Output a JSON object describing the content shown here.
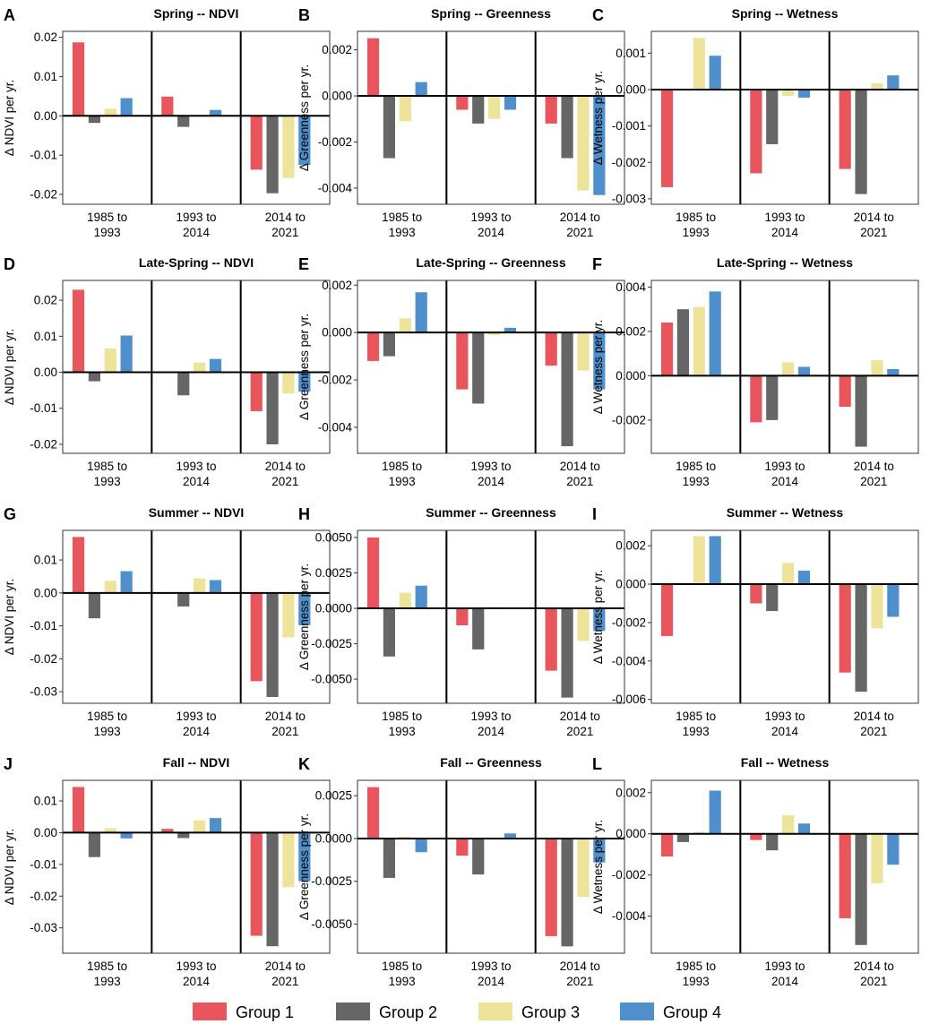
{
  "colors": {
    "Group 1": "#E8555D",
    "Group 2": "#666666",
    "Group 3": "#EDE39A",
    "Group 4": "#4F90CC"
  },
  "legend": [
    "Group 1",
    "Group 2",
    "Group 3",
    "Group 4"
  ],
  "chart_data": [
    {
      "type": "bar",
      "label": "A",
      "title": "Spring -- NDVI",
      "ylabel": "Δ NDVI per yr.",
      "periods": [
        [
          "1985 to",
          "1993"
        ],
        [
          "1993 to",
          "2014"
        ],
        [
          "2014 to",
          "2021"
        ]
      ],
      "ylim": [
        -0.0225,
        0.0215
      ],
      "ticks": [
        {
          "v": 0.02,
          "t": "0.02"
        },
        {
          "v": 0.01,
          "t": "0.01"
        },
        {
          "v": 0,
          "t": "0.00"
        },
        {
          "v": -0.01,
          "t": "-0.01"
        },
        {
          "v": -0.02,
          "t": "-0.02"
        }
      ],
      "series": [
        {
          "name": "Group 1",
          "values": [
            0.0187,
            0.0049,
            -0.0137
          ]
        },
        {
          "name": "Group 2",
          "values": [
            -0.0018,
            -0.0028,
            -0.0197
          ]
        },
        {
          "name": "Group 3",
          "values": [
            0.0018,
            0.0002,
            -0.0158
          ]
        },
        {
          "name": "Group 4",
          "values": [
            0.0045,
            0.0015,
            -0.0125
          ]
        }
      ]
    },
    {
      "type": "bar",
      "label": "B",
      "title": "Spring -- Greenness",
      "ylabel": "Δ Greenness per yr.",
      "periods": [
        [
          "1985 to",
          "1993"
        ],
        [
          "1993 to",
          "2014"
        ],
        [
          "2014 to",
          "2021"
        ]
      ],
      "ylim": [
        -0.0047,
        0.0028
      ],
      "ticks": [
        {
          "v": 0.002,
          "t": "0.002"
        },
        {
          "v": 0,
          "t": "0.000"
        },
        {
          "v": -0.002,
          "t": "-0.002"
        },
        {
          "v": -0.004,
          "t": "-0.004"
        }
      ],
      "series": [
        {
          "name": "Group 1",
          "values": [
            0.0025,
            -0.0006,
            -0.0012
          ]
        },
        {
          "name": "Group 2",
          "values": [
            -0.0027,
            -0.0012,
            -0.0027
          ]
        },
        {
          "name": "Group 3",
          "values": [
            -0.0011,
            -0.001,
            -0.0041
          ]
        },
        {
          "name": "Group 4",
          "values": [
            0.0006,
            -0.0006,
            -0.0043
          ]
        }
      ]
    },
    {
      "type": "bar",
      "label": "C",
      "title": "Spring -- Wetness",
      "ylabel": "Δ Wetness per yr.",
      "periods": [
        [
          "1985 to",
          "1993"
        ],
        [
          "1993 to",
          "2014"
        ],
        [
          "2014 to",
          "2021"
        ]
      ],
      "ylim": [
        -0.00315,
        0.0016
      ],
      "ticks": [
        {
          "v": 0.001,
          "t": "0.001"
        },
        {
          "v": 0,
          "t": "0.000"
        },
        {
          "v": -0.001,
          "t": "-0.001"
        },
        {
          "v": -0.002,
          "t": "-0.002"
        },
        {
          "v": -0.003,
          "t": "-0.003"
        }
      ],
      "series": [
        {
          "name": "Group 1",
          "values": [
            -0.00268,
            -0.0023,
            -0.00218
          ]
        },
        {
          "name": "Group 2",
          "values": [
            0,
            -0.0015,
            -0.00287
          ]
        },
        {
          "name": "Group 3",
          "values": [
            0.00142,
            -0.00017,
            0.00017
          ]
        },
        {
          "name": "Group 4",
          "values": [
            0.00093,
            -0.00022,
            0.00039
          ]
        }
      ]
    },
    {
      "type": "bar",
      "label": "D",
      "title": "Late-Spring -- NDVI",
      "ylabel": "Δ NDVI per yr.",
      "periods": [
        [
          "1985 to",
          "1993"
        ],
        [
          "1993 to",
          "2014"
        ],
        [
          "2014 to",
          "2021"
        ]
      ],
      "ylim": [
        -0.0225,
        0.0255
      ],
      "ticks": [
        {
          "v": 0.02,
          "t": "0.02"
        },
        {
          "v": 0.01,
          "t": "0.01"
        },
        {
          "v": 0,
          "t": "0.00"
        },
        {
          "v": -0.01,
          "t": "-0.01"
        },
        {
          "v": -0.02,
          "t": "-0.02"
        }
      ],
      "series": [
        {
          "name": "Group 1",
          "values": [
            0.0229,
            0,
            -0.0108
          ]
        },
        {
          "name": "Group 2",
          "values": [
            -0.0025,
            -0.0064,
            -0.02
          ]
        },
        {
          "name": "Group 3",
          "values": [
            0.0066,
            0.0027,
            -0.0059
          ]
        },
        {
          "name": "Group 4",
          "values": [
            0.0102,
            0.0037,
            -0.0054
          ]
        }
      ]
    },
    {
      "type": "bar",
      "label": "E",
      "title": "Late-Spring -- Greenness",
      "ylabel": "Δ Greenness per yr.",
      "periods": [
        [
          "1985 to",
          "1993"
        ],
        [
          "1993 to",
          "2014"
        ],
        [
          "2014 to",
          "2021"
        ]
      ],
      "ylim": [
        -0.0051,
        0.0022
      ],
      "ticks": [
        {
          "v": 0.002,
          "t": "0.002"
        },
        {
          "v": 0,
          "t": "0.000"
        },
        {
          "v": -0.002,
          "t": "-0.002"
        },
        {
          "v": -0.004,
          "t": "-0.004"
        }
      ],
      "series": [
        {
          "name": "Group 1",
          "values": [
            -0.0012,
            -0.0024,
            -0.0014
          ]
        },
        {
          "name": "Group 2",
          "values": [
            -0.001,
            -0.003,
            -0.0048
          ]
        },
        {
          "name": "Group 3",
          "values": [
            0.0006,
            -0.0001,
            -0.0016
          ]
        },
        {
          "name": "Group 4",
          "values": [
            0.0017,
            0.0002,
            -0.0024
          ]
        }
      ]
    },
    {
      "type": "bar",
      "label": "F",
      "title": "Late-Spring -- Wetness",
      "ylabel": "Δ Wetness per yr.",
      "periods": [
        [
          "1985 to",
          "1993"
        ],
        [
          "1993 to",
          "2014"
        ],
        [
          "2014 to",
          "2021"
        ]
      ],
      "ylim": [
        -0.0035,
        0.0043
      ],
      "ticks": [
        {
          "v": 0.004,
          "t": "0.004"
        },
        {
          "v": 0.002,
          "t": "0.002"
        },
        {
          "v": 0,
          "t": "0.000"
        },
        {
          "v": -0.002,
          "t": "-0.002"
        }
      ],
      "series": [
        {
          "name": "Group 1",
          "values": [
            0.0024,
            -0.0021,
            -0.0014
          ]
        },
        {
          "name": "Group 2",
          "values": [
            0.003,
            -0.002,
            -0.0032
          ]
        },
        {
          "name": "Group 3",
          "values": [
            0.0031,
            0.0006,
            0.0007
          ]
        },
        {
          "name": "Group 4",
          "values": [
            0.0038,
            0.0004,
            0.0003
          ]
        }
      ]
    },
    {
      "type": "bar",
      "label": "G",
      "title": "Summer -- NDVI",
      "ylabel": "Δ NDVI per yr.",
      "periods": [
        [
          "1985 to",
          "1993"
        ],
        [
          "1993 to",
          "2014"
        ],
        [
          "2014 to",
          "2021"
        ]
      ],
      "ylim": [
        -0.0335,
        0.019
      ],
      "ticks": [
        {
          "v": 0.01,
          "t": "0.01"
        },
        {
          "v": 0,
          "t": "0.00"
        },
        {
          "v": -0.01,
          "t": "-0.01"
        },
        {
          "v": -0.02,
          "t": "-0.02"
        },
        {
          "v": -0.03,
          "t": "-0.03"
        }
      ],
      "series": [
        {
          "name": "Group 1",
          "values": [
            0.017,
            0,
            -0.0268
          ]
        },
        {
          "name": "Group 2",
          "values": [
            -0.0077,
            -0.0041,
            -0.0316
          ]
        },
        {
          "name": "Group 3",
          "values": [
            0.0037,
            0.0044,
            -0.0135
          ]
        },
        {
          "name": "Group 4",
          "values": [
            0.0066,
            0.0039,
            -0.0098
          ]
        }
      ]
    },
    {
      "type": "bar",
      "label": "H",
      "title": "Summer -- Greenness",
      "ylabel": "Δ Greenness per yr.",
      "periods": [
        [
          "1985 to",
          "1993"
        ],
        [
          "1993 to",
          "2014"
        ],
        [
          "2014 to",
          "2021"
        ]
      ],
      "ylim": [
        -0.0067,
        0.0055
      ],
      "ticks": [
        {
          "v": 0.005,
          "t": "0.0050"
        },
        {
          "v": 0.0025,
          "t": "0.0025"
        },
        {
          "v": 0,
          "t": "0.0000"
        },
        {
          "v": -0.0025,
          "t": "-0.0025"
        },
        {
          "v": -0.005,
          "t": "-0.0050"
        }
      ],
      "series": [
        {
          "name": "Group 1",
          "values": [
            0.005,
            -0.0012,
            -0.0044
          ]
        },
        {
          "name": "Group 2",
          "values": [
            -0.0034,
            -0.0029,
            -0.0063
          ]
        },
        {
          "name": "Group 3",
          "values": [
            0.0011,
            0.0001,
            -0.0023
          ]
        },
        {
          "name": "Group 4",
          "values": [
            0.0016,
            0,
            -0.0016
          ]
        }
      ]
    },
    {
      "type": "bar",
      "label": "I",
      "title": "Summer -- Wetness",
      "ylabel": "Δ Wetness per yr.",
      "periods": [
        [
          "1985 to",
          "1993"
        ],
        [
          "1993 to",
          "2014"
        ],
        [
          "2014 to",
          "2021"
        ]
      ],
      "ylim": [
        -0.0062,
        0.0028
      ],
      "ticks": [
        {
          "v": 0.002,
          "t": "0.002"
        },
        {
          "v": 0,
          "t": "0.000"
        },
        {
          "v": -0.002,
          "t": "-0.002"
        },
        {
          "v": -0.004,
          "t": "-0.004"
        },
        {
          "v": -0.006,
          "t": "-0.006"
        }
      ],
      "series": [
        {
          "name": "Group 1",
          "values": [
            -0.0027,
            -0.001,
            -0.0046
          ]
        },
        {
          "name": "Group 2",
          "values": [
            0,
            -0.0014,
            -0.0056
          ]
        },
        {
          "name": "Group 3",
          "values": [
            0.0025,
            0.0011,
            -0.0023
          ]
        },
        {
          "name": "Group 4",
          "values": [
            0.0025,
            0.0007,
            -0.0017
          ]
        }
      ]
    },
    {
      "type": "bar",
      "label": "J",
      "title": "Fall -- NDVI",
      "ylabel": "Δ NDVI per yr.",
      "periods": [
        [
          "1985 to",
          "1993"
        ],
        [
          "1993 to",
          "2014"
        ],
        [
          "2014 to",
          "2021"
        ]
      ],
      "ylim": [
        -0.038,
        0.0165
      ],
      "ticks": [
        {
          "v": 0.01,
          "t": "0.01"
        },
        {
          "v": 0,
          "t": "0.00"
        },
        {
          "v": -0.01,
          "t": "-0.01"
        },
        {
          "v": -0.02,
          "t": "-0.02"
        },
        {
          "v": -0.03,
          "t": "-0.03"
        }
      ],
      "series": [
        {
          "name": "Group 1",
          "values": [
            0.0144,
            0.0012,
            -0.0325
          ]
        },
        {
          "name": "Group 2",
          "values": [
            -0.0077,
            -0.0017,
            -0.0358
          ]
        },
        {
          "name": "Group 3",
          "values": [
            0.0014,
            0.0039,
            -0.0172
          ]
        },
        {
          "name": "Group 4",
          "values": [
            -0.0018,
            0.0046,
            -0.0153
          ]
        }
      ]
    },
    {
      "type": "bar",
      "label": "K",
      "title": "Fall -- Greenness",
      "ylabel": "Δ Greenness per yr.",
      "periods": [
        [
          "1985 to",
          "1993"
        ],
        [
          "1993 to",
          "2014"
        ],
        [
          "2014 to",
          "2021"
        ]
      ],
      "ylim": [
        -0.0067,
        0.0034
      ],
      "ticks": [
        {
          "v": 0.0025,
          "t": "0.0025"
        },
        {
          "v": 0,
          "t": "0.0000"
        },
        {
          "v": -0.0025,
          "t": "-0.0025"
        },
        {
          "v": -0.005,
          "t": "-0.0050"
        }
      ],
      "series": [
        {
          "name": "Group 1",
          "values": [
            0.003,
            -0.001,
            -0.0057
          ]
        },
        {
          "name": "Group 2",
          "values": [
            -0.0023,
            -0.0021,
            -0.0063
          ]
        },
        {
          "name": "Group 3",
          "values": [
            0.0001,
            0,
            -0.0034
          ]
        },
        {
          "name": "Group 4",
          "values": [
            -0.0008,
            0.0003,
            -0.0014
          ]
        }
      ]
    },
    {
      "type": "bar",
      "label": "L",
      "title": "Fall -- Wetness",
      "ylabel": "Δ Wetness per yr.",
      "periods": [
        [
          "1985 to",
          "1993"
        ],
        [
          "1993 to",
          "2014"
        ],
        [
          "2014 to",
          "2021"
        ]
      ],
      "ylim": [
        -0.0058,
        0.0026
      ],
      "ticks": [
        {
          "v": 0.002,
          "t": "0.002"
        },
        {
          "v": 0,
          "t": "0.000"
        },
        {
          "v": -0.002,
          "t": "-0.002"
        },
        {
          "v": -0.004,
          "t": "-0.004"
        }
      ],
      "series": [
        {
          "name": "Group 1",
          "values": [
            -0.0011,
            -0.0003,
            -0.0041
          ]
        },
        {
          "name": "Group 2",
          "values": [
            -0.0004,
            -0.0008,
            -0.0054
          ]
        },
        {
          "name": "Group 3",
          "values": [
            0.0001,
            0.0009,
            -0.0024
          ]
        },
        {
          "name": "Group 4",
          "values": [
            0.0021,
            0.0005,
            -0.0015
          ]
        }
      ]
    }
  ]
}
